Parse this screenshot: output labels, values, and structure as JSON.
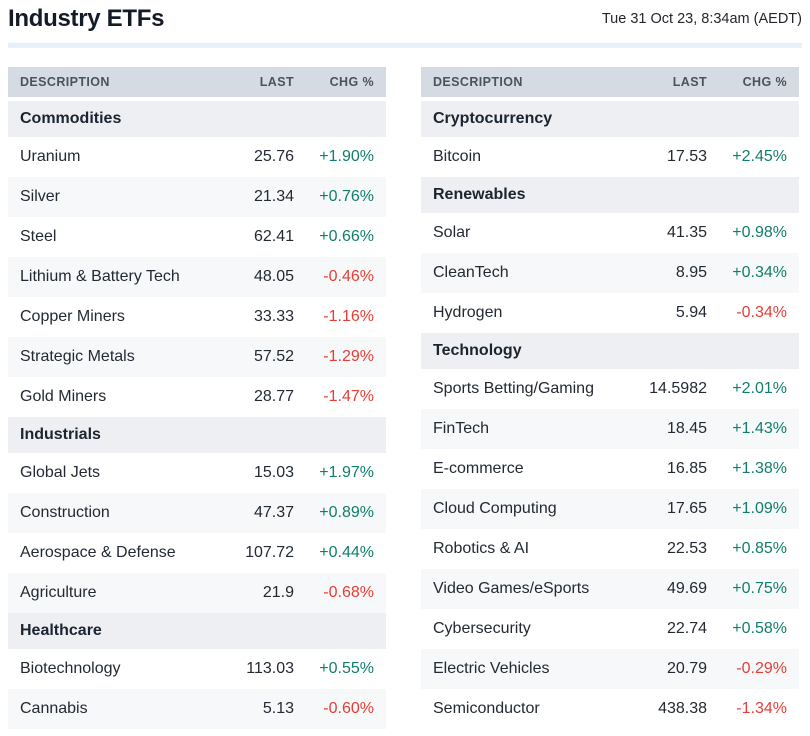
{
  "page": {
    "title": "Industry ETFs",
    "timestamp": "Tue 31 Oct 23, 8:34am (AEDT)"
  },
  "colors": {
    "positive": "#107e6c",
    "negative": "#e43e36",
    "column_header_bg": "#d4dbe2",
    "section_header_bg": "#edeff2",
    "alt_row_bg": "#f6f8f9",
    "divider": "#e8f0f7"
  },
  "column_headers": {
    "description": "DESCRIPTION",
    "last": "LAST",
    "chg": "CHG %"
  },
  "tables": [
    {
      "id": "left",
      "sections": [
        {
          "name": "Commodities",
          "rows": [
            {
              "description": "Uranium",
              "last": "25.76",
              "chg": "+1.90%",
              "direction": "up"
            },
            {
              "description": "Silver",
              "last": "21.34",
              "chg": "+0.76%",
              "direction": "up"
            },
            {
              "description": "Steel",
              "last": "62.41",
              "chg": "+0.66%",
              "direction": "up"
            },
            {
              "description": "Lithium & Battery Tech",
              "last": "48.05",
              "chg": "-0.46%",
              "direction": "down"
            },
            {
              "description": "Copper Miners",
              "last": "33.33",
              "chg": "-1.16%",
              "direction": "down"
            },
            {
              "description": "Strategic Metals",
              "last": "57.52",
              "chg": "-1.29%",
              "direction": "down"
            },
            {
              "description": "Gold Miners",
              "last": "28.77",
              "chg": "-1.47%",
              "direction": "down"
            }
          ]
        },
        {
          "name": "Industrials",
          "rows": [
            {
              "description": "Global Jets",
              "last": "15.03",
              "chg": "+1.97%",
              "direction": "up"
            },
            {
              "description": "Construction",
              "last": "47.37",
              "chg": "+0.89%",
              "direction": "up"
            },
            {
              "description": "Aerospace & Defense",
              "last": "107.72",
              "chg": "+0.44%",
              "direction": "up"
            },
            {
              "description": "Agriculture",
              "last": "21.9",
              "chg": "-0.68%",
              "direction": "down"
            }
          ]
        },
        {
          "name": "Healthcare",
          "rows": [
            {
              "description": "Biotechnology",
              "last": "113.03",
              "chg": "+0.55%",
              "direction": "up"
            },
            {
              "description": "Cannabis",
              "last": "5.13",
              "chg": "-0.60%",
              "direction": "down"
            }
          ]
        }
      ]
    },
    {
      "id": "right",
      "sections": [
        {
          "name": "Cryptocurrency",
          "rows": [
            {
              "description": "Bitcoin",
              "last": "17.53",
              "chg": "+2.45%",
              "direction": "up"
            }
          ]
        },
        {
          "name": "Renewables",
          "rows": [
            {
              "description": "Solar",
              "last": "41.35",
              "chg": "+0.98%",
              "direction": "up"
            },
            {
              "description": "CleanTech",
              "last": "8.95",
              "chg": "+0.34%",
              "direction": "up"
            },
            {
              "description": "Hydrogen",
              "last": "5.94",
              "chg": "-0.34%",
              "direction": "down"
            }
          ]
        },
        {
          "name": "Technology",
          "rows": [
            {
              "description": "Sports Betting/Gaming",
              "last": "14.5982",
              "chg": "+2.01%",
              "direction": "up"
            },
            {
              "description": "FinTech",
              "last": "18.45",
              "chg": "+1.43%",
              "direction": "up"
            },
            {
              "description": "E-commerce",
              "last": "16.85",
              "chg": "+1.38%",
              "direction": "up"
            },
            {
              "description": "Cloud Computing",
              "last": "17.65",
              "chg": "+1.09%",
              "direction": "up"
            },
            {
              "description": "Robotics & AI",
              "last": "22.53",
              "chg": "+0.85%",
              "direction": "up"
            },
            {
              "description": "Video Games/eSports",
              "last": "49.69",
              "chg": "+0.75%",
              "direction": "up"
            },
            {
              "description": "Cybersecurity",
              "last": "22.74",
              "chg": "+0.58%",
              "direction": "up"
            },
            {
              "description": "Electric Vehicles",
              "last": "20.79",
              "chg": "-0.29%",
              "direction": "down"
            },
            {
              "description": "Semiconductor",
              "last": "438.38",
              "chg": "-1.34%",
              "direction": "down"
            }
          ]
        }
      ]
    }
  ]
}
